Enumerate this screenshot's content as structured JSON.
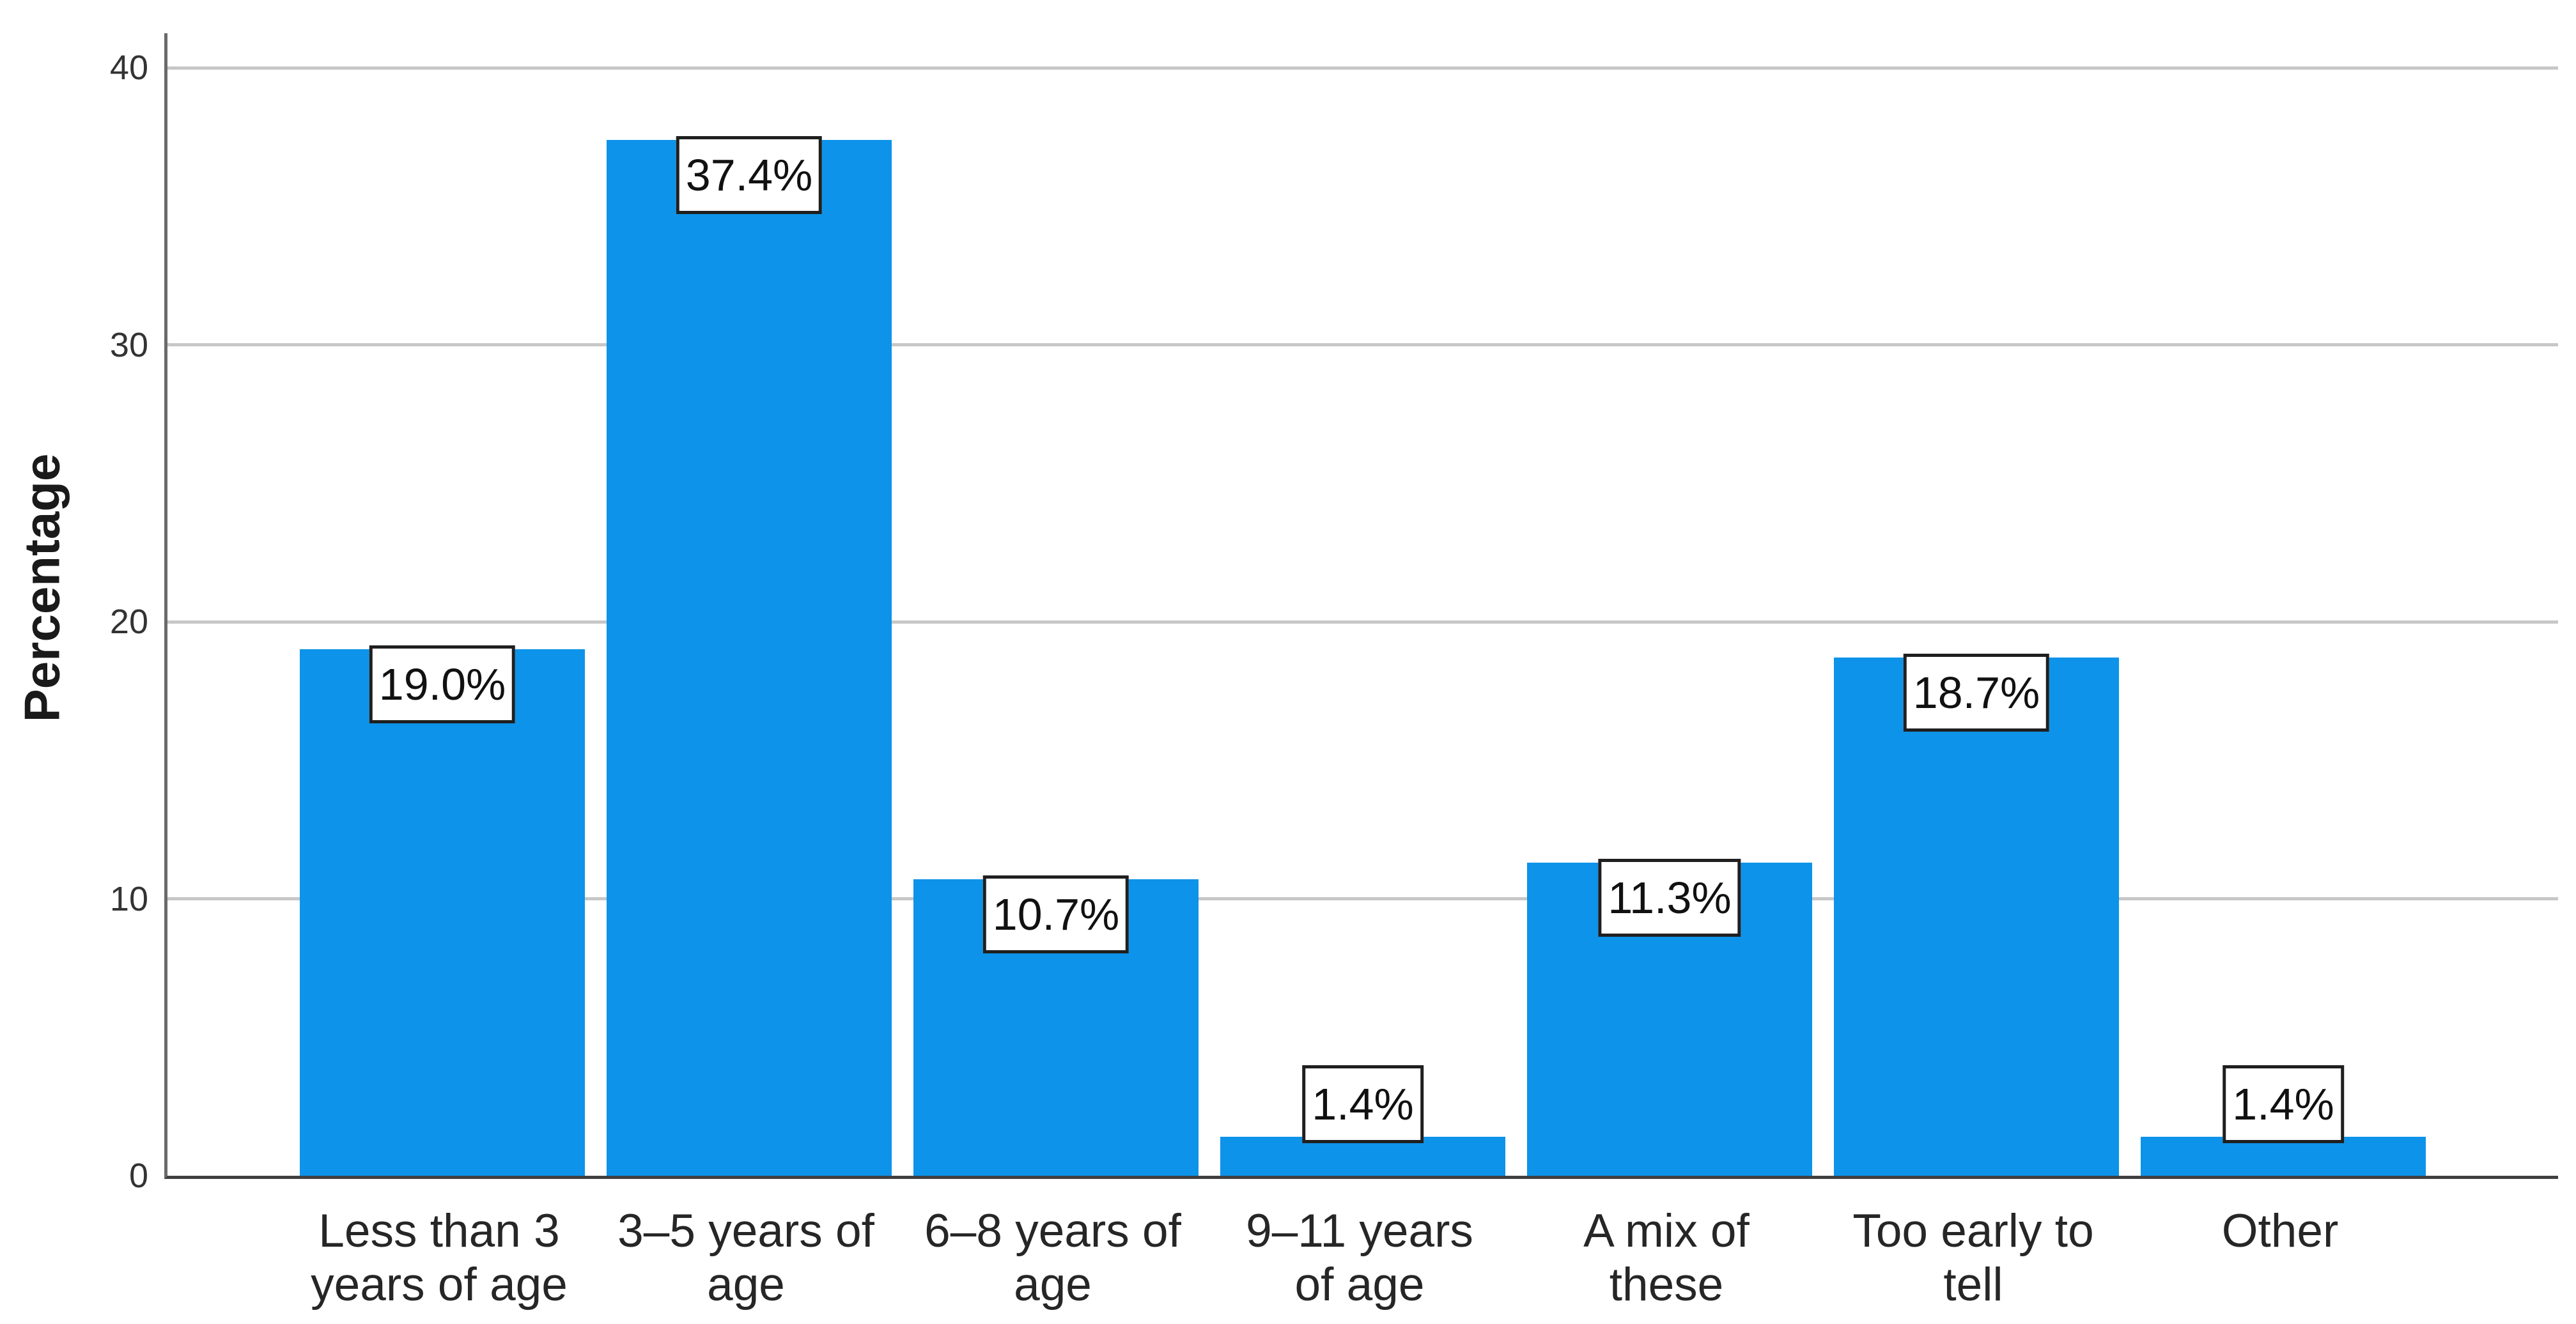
{
  "chart_data": {
    "type": "bar",
    "title": "",
    "xlabel": "",
    "ylabel": "Percentage",
    "categories": [
      "Less than 3 years of age",
      "3–5 years of age",
      "6–8 years of age",
      "9–11 years of age",
      "A mix of these",
      "Too early to tell",
      "Other"
    ],
    "category_display_lines": [
      "Less than 3\nyears of age",
      "3–5 years of\nage",
      "6–8 years of\nage",
      "9–11 years\nof age",
      "A mix of\nthese",
      "Too early to\ntell",
      "Other"
    ],
    "values": [
      19.0,
      37.4,
      10.7,
      1.4,
      11.3,
      18.7,
      1.4
    ],
    "bar_labels": [
      "19.0%",
      "37.4%",
      "10.7%",
      "1.4%",
      "11.3%",
      "18.7%",
      "1.4%"
    ],
    "yticks": [
      0,
      10,
      20,
      30,
      40
    ],
    "ylim": [
      0,
      41.2
    ],
    "grid": "horizontal-only",
    "legend_position": "none",
    "colors": {
      "bar_fill": "#0D93E9",
      "gridline": "#C7C7C7",
      "y_axis_line": "#6A6A6A",
      "x_axis_line": "#404040",
      "tick_text": "#333333",
      "category_text": "#262626",
      "label_box_border": "#1F1F1F",
      "label_box_fill": "#FFFFFF"
    }
  }
}
